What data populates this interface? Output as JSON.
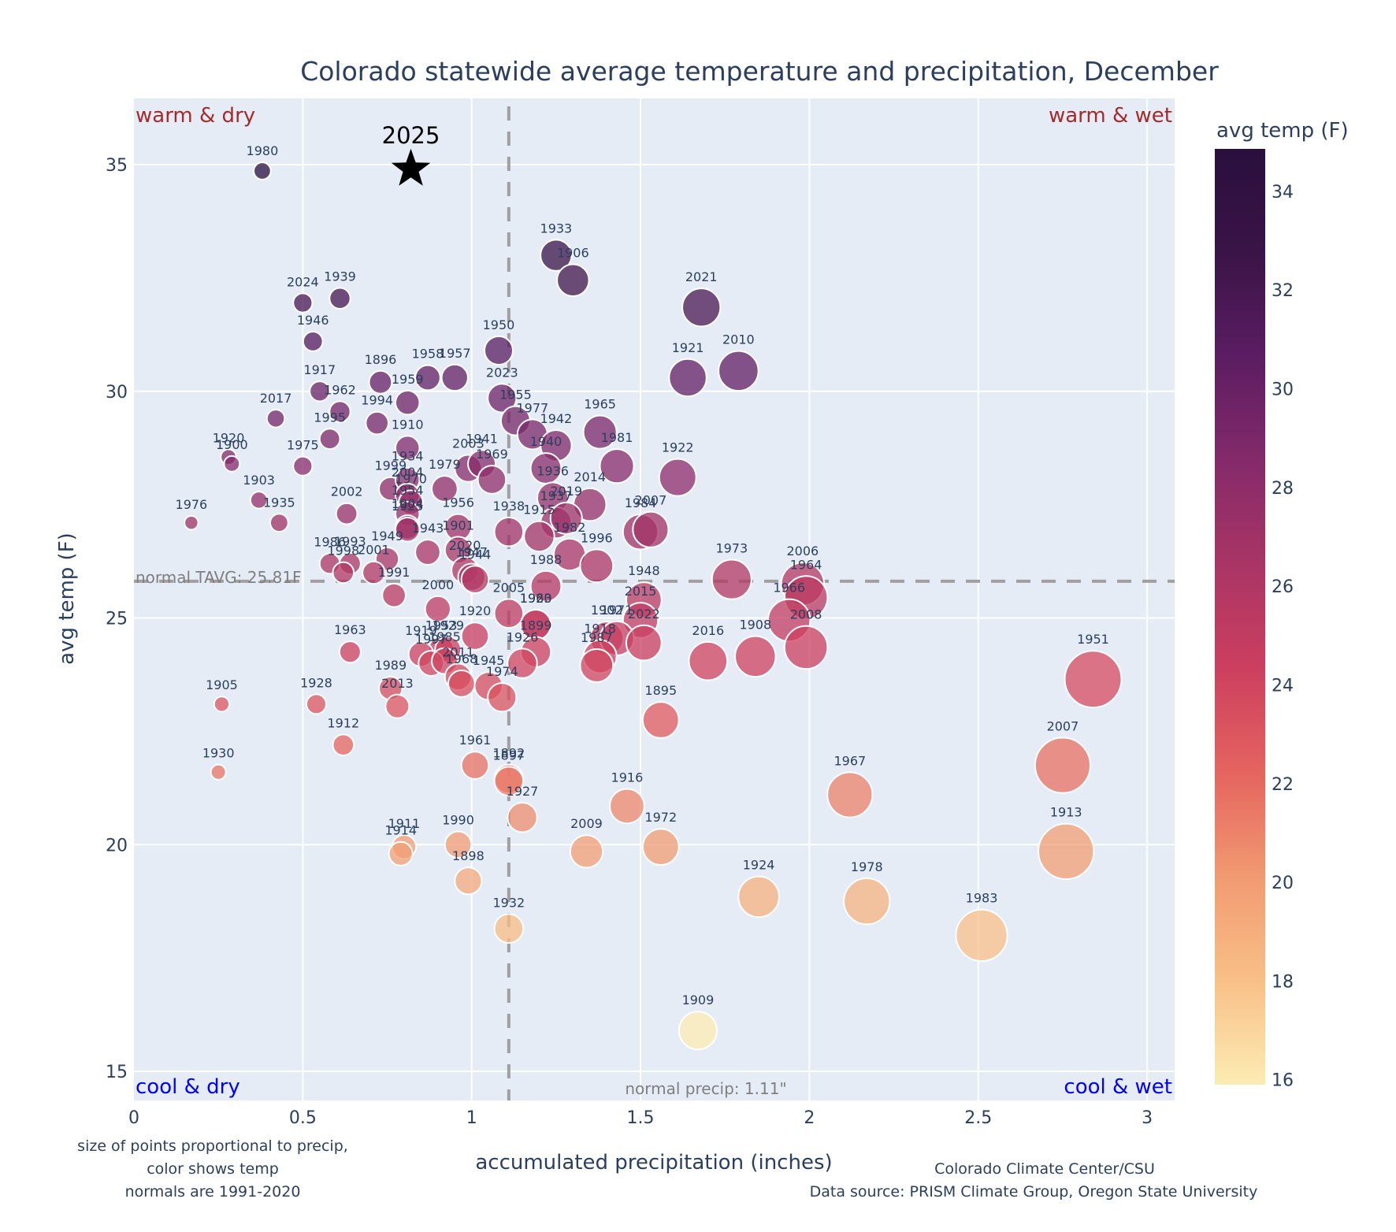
{
  "chart_data": {
    "type": "scatter",
    "title": "Colorado statewide average temperature and precipitation, December",
    "xlabel": "accumulated precipitation (inches)",
    "ylabel": "avg temp (F)",
    "xlim": [
      0,
      3.08
    ],
    "ylim": [
      14.6,
      36.5
    ],
    "xticks": [
      0,
      0.5,
      1,
      1.5,
      2,
      2.5,
      3
    ],
    "xtick_labels": [
      "0",
      "0.5",
      "1",
      "1.5",
      "2",
      "2.5",
      "3"
    ],
    "yticks": [
      15,
      20,
      25,
      30,
      35
    ],
    "ytick_labels": [
      "15",
      "20",
      "25",
      "30",
      "35"
    ],
    "grid": true,
    "point_size_encoding": "precip",
    "color_encoding": "avg temp",
    "colorbar": {
      "title": "avg temp (F)",
      "range": [
        15.9,
        34.86
      ],
      "ticks": [
        16,
        18,
        20,
        22,
        24,
        26,
        28,
        30,
        32,
        34
      ],
      "tick_labels": [
        "16",
        "18",
        "20",
        "22",
        "24",
        "26",
        "28",
        "30",
        "32",
        "34"
      ],
      "colorscale": [
        "#fcecb3",
        "#f8c088",
        "#f19a71",
        "#e5645f",
        "#cc3f5f",
        "#a93565",
        "#842a6a",
        "#5b1d62",
        "#3a1446",
        "#2a0f3d"
      ]
    },
    "normals": {
      "temp": 25.81,
      "temp_label": "normal TAVG: 25.81F",
      "precip": 1.11,
      "precip_label": "normal precip: 1.11\""
    },
    "quadrant_labels": {
      "top_left": "warm & dry",
      "top_right": "warm & wet",
      "bottom_left": "cool & dry",
      "bottom_right": "cool & wet"
    },
    "highlight": {
      "year": "2025",
      "precip": 0.82,
      "temp": 34.9,
      "marker": "star"
    },
    "points": [
      {
        "year": "1980",
        "precip": 0.38,
        "temp": 34.86
      },
      {
        "year": "1933",
        "precip": 1.25,
        "temp": 33.0
      },
      {
        "year": "1906",
        "precip": 1.3,
        "temp": 32.45
      },
      {
        "year": "2021",
        "precip": 1.68,
        "temp": 31.85
      },
      {
        "year": "2024",
        "precip": 0.5,
        "temp": 31.95
      },
      {
        "year": "1939",
        "precip": 0.61,
        "temp": 32.05
      },
      {
        "year": "1946",
        "precip": 0.53,
        "temp": 31.1
      },
      {
        "year": "1950",
        "precip": 1.08,
        "temp": 30.9
      },
      {
        "year": "1921",
        "precip": 1.64,
        "temp": 30.3
      },
      {
        "year": "2010",
        "precip": 1.79,
        "temp": 30.45
      },
      {
        "year": "1917",
        "precip": 0.55,
        "temp": 30.0
      },
      {
        "year": "1896",
        "precip": 0.73,
        "temp": 30.2
      },
      {
        "year": "1958",
        "precip": 0.87,
        "temp": 30.3
      },
      {
        "year": "1957",
        "precip": 0.95,
        "temp": 30.3
      },
      {
        "year": "1959",
        "precip": 0.81,
        "temp": 29.75
      },
      {
        "year": "2023",
        "precip": 1.09,
        "temp": 29.85
      },
      {
        "year": "1962",
        "precip": 0.61,
        "temp": 29.55
      },
      {
        "year": "2017",
        "precip": 0.42,
        "temp": 29.4
      },
      {
        "year": "1994",
        "precip": 0.72,
        "temp": 29.3
      },
      {
        "year": "1955",
        "precip": 1.13,
        "temp": 29.35
      },
      {
        "year": "1977",
        "precip": 1.18,
        "temp": 29.05
      },
      {
        "year": "1965",
        "precip": 1.38,
        "temp": 29.1
      },
      {
        "year": "1995",
        "precip": 0.58,
        "temp": 28.95
      },
      {
        "year": "1942",
        "precip": 1.25,
        "temp": 28.8
      },
      {
        "year": "1910",
        "precip": 0.81,
        "temp": 28.75
      },
      {
        "year": "1920",
        "precip": 0.28,
        "temp": 28.55
      },
      {
        "year": "1900",
        "precip": 0.29,
        "temp": 28.4
      },
      {
        "year": "1975",
        "precip": 0.5,
        "temp": 28.35
      },
      {
        "year": "1940",
        "precip": 1.22,
        "temp": 28.3
      },
      {
        "year": "1981",
        "precip": 1.43,
        "temp": 28.35
      },
      {
        "year": "1922",
        "precip": 1.61,
        "temp": 28.1
      },
      {
        "year": "2003",
        "precip": 0.99,
        "temp": 28.3
      },
      {
        "year": "1941",
        "precip": 1.03,
        "temp": 28.4
      },
      {
        "year": "1969",
        "precip": 1.06,
        "temp": 28.05
      },
      {
        "year": "1936",
        "precip": 1.24,
        "temp": 27.65
      },
      {
        "year": "1979",
        "precip": 0.92,
        "temp": 27.85
      },
      {
        "year": "1999",
        "precip": 0.76,
        "temp": 27.85
      },
      {
        "year": "1934",
        "precip": 0.81,
        "temp": 28.05
      },
      {
        "year": "2004",
        "precip": 0.81,
        "temp": 27.7
      },
      {
        "year": "1970",
        "precip": 0.82,
        "temp": 27.55
      },
      {
        "year": "2014",
        "precip": 1.35,
        "temp": 27.5
      },
      {
        "year": "1903",
        "precip": 0.37,
        "temp": 27.6
      },
      {
        "year": "2002",
        "precip": 0.63,
        "temp": 27.3
      },
      {
        "year": "1954",
        "precip": 0.81,
        "temp": 27.3
      },
      {
        "year": "1904",
        "precip": 0.81,
        "temp": 27.0
      },
      {
        "year": "1956",
        "precip": 0.96,
        "temp": 27.0
      },
      {
        "year": "1937",
        "precip": 1.25,
        "temp": 27.1
      },
      {
        "year": "2019",
        "precip": 1.28,
        "temp": 27.2
      },
      {
        "year": "1915",
        "precip": 1.2,
        "temp": 26.8
      },
      {
        "year": "1938",
        "precip": 1.11,
        "temp": 26.9
      },
      {
        "year": "1984",
        "precip": 1.5,
        "temp": 26.9
      },
      {
        "year": "2007",
        "precip": 1.53,
        "temp": 26.95
      },
      {
        "year": "1976",
        "precip": 0.17,
        "temp": 27.1
      },
      {
        "year": "1935",
        "precip": 0.43,
        "temp": 27.1
      },
      {
        "year": "1925",
        "precip": 0.81,
        "temp": 26.95
      },
      {
        "year": "1901",
        "precip": 0.96,
        "temp": 26.5
      },
      {
        "year": "1943",
        "precip": 0.87,
        "temp": 26.45
      },
      {
        "year": "1982",
        "precip": 1.29,
        "temp": 26.4
      },
      {
        "year": "1996",
        "precip": 1.37,
        "temp": 26.15
      },
      {
        "year": "1986",
        "precip": 0.58,
        "temp": 26.2
      },
      {
        "year": "1993",
        "precip": 0.64,
        "temp": 26.2
      },
      {
        "year": "1949",
        "precip": 0.75,
        "temp": 26.3
      },
      {
        "year": "1998",
        "precip": 0.62,
        "temp": 26.0
      },
      {
        "year": "2001",
        "precip": 0.71,
        "temp": 26.0
      },
      {
        "year": "2020",
        "precip": 0.98,
        "temp": 26.05
      },
      {
        "year": "1947",
        "precip": 1.0,
        "temp": 25.9
      },
      {
        "year": "1944",
        "precip": 1.01,
        "temp": 25.85
      },
      {
        "year": "1973",
        "precip": 1.77,
        "temp": 25.85
      },
      {
        "year": "1988",
        "precip": 1.22,
        "temp": 25.7
      },
      {
        "year": "2006",
        "precip": 1.98,
        "temp": 25.75
      },
      {
        "year": "1964",
        "precip": 1.99,
        "temp": 25.45
      },
      {
        "year": "1966",
        "precip": 1.94,
        "temp": 24.95
      },
      {
        "year": "1991",
        "precip": 0.77,
        "temp": 25.5
      },
      {
        "year": "2000",
        "precip": 0.9,
        "temp": 25.2
      },
      {
        "year": "2005",
        "precip": 1.11,
        "temp": 25.1
      },
      {
        "year": "1923",
        "precip": 1.19,
        "temp": 24.85
      },
      {
        "year": "1960",
        "precip": 1.19,
        "temp": 24.85
      },
      {
        "year": "1948",
        "precip": 1.51,
        "temp": 25.4
      },
      {
        "year": "2015",
        "precip": 1.5,
        "temp": 24.95
      },
      {
        "year": "1920b",
        "precip": 1.01,
        "temp": 24.6
      },
      {
        "year": "1899",
        "precip": 1.19,
        "temp": 24.25
      },
      {
        "year": "1902",
        "precip": 1.4,
        "temp": 24.55
      },
      {
        "year": "1971",
        "precip": 1.43,
        "temp": 24.55
      },
      {
        "year": "2022",
        "precip": 1.51,
        "temp": 24.45
      },
      {
        "year": "2008",
        "precip": 1.99,
        "temp": 24.35
      },
      {
        "year": "1908",
        "precip": 1.84,
        "temp": 24.15
      },
      {
        "year": "2016",
        "precip": 1.7,
        "temp": 24.05
      },
      {
        "year": "1951",
        "precip": 2.84,
        "temp": 23.65
      },
      {
        "year": "1963",
        "precip": 0.64,
        "temp": 24.25
      },
      {
        "year": "1953",
        "precip": 0.91,
        "temp": 24.3
      },
      {
        "year": "1929",
        "precip": 0.93,
        "temp": 24.3
      },
      {
        "year": "1919",
        "precip": 0.85,
        "temp": 24.2
      },
      {
        "year": "1997",
        "precip": 0.88,
        "temp": 24.0
      },
      {
        "year": "1985",
        "precip": 0.92,
        "temp": 24.05
      },
      {
        "year": "1926",
        "precip": 1.15,
        "temp": 24.0
      },
      {
        "year": "1918",
        "precip": 1.38,
        "temp": 24.15
      },
      {
        "year": "1987",
        "precip": 1.37,
        "temp": 23.95
      },
      {
        "year": "2011",
        "precip": 0.96,
        "temp": 23.7
      },
      {
        "year": "1968",
        "precip": 0.97,
        "temp": 23.55
      },
      {
        "year": "1945",
        "precip": 1.05,
        "temp": 23.5
      },
      {
        "year": "1974",
        "precip": 1.09,
        "temp": 23.25
      },
      {
        "year": "1989",
        "precip": 0.76,
        "temp": 23.45
      },
      {
        "year": "2013",
        "precip": 0.78,
        "temp": 23.05
      },
      {
        "year": "1905",
        "precip": 0.26,
        "temp": 23.1
      },
      {
        "year": "1928",
        "precip": 0.54,
        "temp": 23.1
      },
      {
        "year": "1895",
        "precip": 1.56,
        "temp": 22.75
      },
      {
        "year": "1912",
        "precip": 0.62,
        "temp": 22.2
      },
      {
        "year": "2007b",
        "precip": 2.75,
        "temp": 21.75
      },
      {
        "year": "1961",
        "precip": 1.01,
        "temp": 21.75
      },
      {
        "year": "1892",
        "precip": 1.11,
        "temp": 21.45
      },
      {
        "year": "1897",
        "precip": 1.11,
        "temp": 21.4
      },
      {
        "year": "1930",
        "precip": 0.25,
        "temp": 21.6
      },
      {
        "year": "1967",
        "precip": 2.12,
        "temp": 21.1
      },
      {
        "year": "1916",
        "precip": 1.46,
        "temp": 20.85
      },
      {
        "year": "1927",
        "precip": 1.15,
        "temp": 20.6
      },
      {
        "year": "1911",
        "precip": 0.8,
        "temp": 19.95
      },
      {
        "year": "1914",
        "precip": 0.79,
        "temp": 19.8
      },
      {
        "year": "1990",
        "precip": 0.96,
        "temp": 20.0
      },
      {
        "year": "1972",
        "precip": 1.56,
        "temp": 19.95
      },
      {
        "year": "2009",
        "precip": 1.34,
        "temp": 19.85
      },
      {
        "year": "1913",
        "precip": 2.76,
        "temp": 19.85
      },
      {
        "year": "1898",
        "precip": 0.99,
        "temp": 19.2
      },
      {
        "year": "1924",
        "precip": 1.85,
        "temp": 18.85
      },
      {
        "year": "1978",
        "precip": 2.17,
        "temp": 18.75
      },
      {
        "year": "1932",
        "precip": 1.11,
        "temp": 18.15
      },
      {
        "year": "1983",
        "precip": 2.51,
        "temp": 18.0
      },
      {
        "year": "1909",
        "precip": 1.67,
        "temp": 15.9
      }
    ]
  },
  "annotations": {
    "note_lines": [
      "size of points proportional to precip,",
      "color shows temp",
      "normals are 1991-2020"
    ],
    "credit_lines": [
      "Colorado Climate Center/CSU",
      "Data source: PRISM Climate Group, Oregon State University"
    ]
  }
}
